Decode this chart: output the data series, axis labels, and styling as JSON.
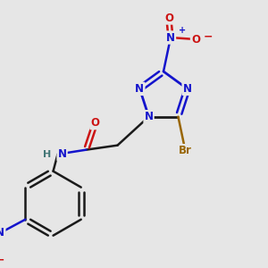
{
  "background_color": "#e6e6e6",
  "colors": {
    "C": "#1a1a1a",
    "N": "#1414cc",
    "O": "#cc1414",
    "Br": "#996600",
    "H": "#447777",
    "bond": "#1a1a1a"
  },
  "figsize": [
    3.0,
    3.0
  ],
  "dpi": 100
}
